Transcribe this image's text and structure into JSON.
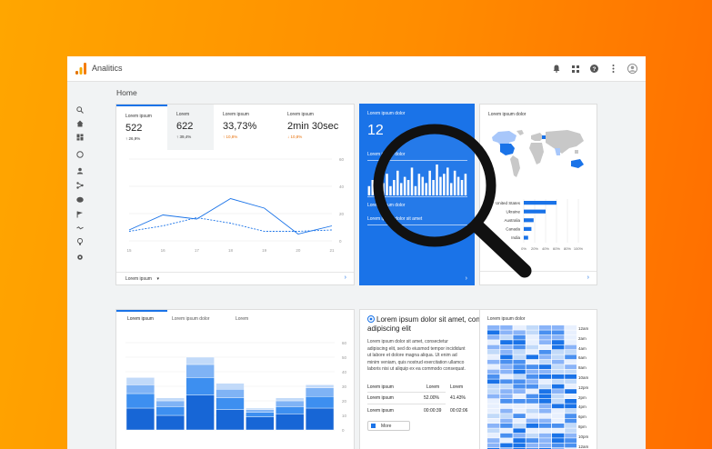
{
  "app": {
    "title": "Analitics"
  },
  "page": {
    "title": "Home"
  },
  "topbar_icons": [
    "bell-icon",
    "apps-icon",
    "help-icon",
    "more-vert-icon",
    "account-icon"
  ],
  "sidebar_icons": [
    "search-icon",
    "home-icon",
    "dashboard-icon",
    "realtime-icon",
    "user-icon",
    "share-icon",
    "chat-icon",
    "flag-icon",
    "trend-icon",
    "lightbulb-icon",
    "gear-icon"
  ],
  "overview": {
    "metrics": [
      {
        "label": "Lorem ipsum",
        "value": "522",
        "delta": "↑ 26,9%"
      },
      {
        "label": "Lorem",
        "value": "622",
        "delta": "↑ 39,4%"
      },
      {
        "label": "Lorem ipsum",
        "value": "33,73%",
        "delta": "↑ 10,8%"
      },
      {
        "label": "Lorem ipsum",
        "value": "2min 30sec",
        "delta": "↓ 10,8%"
      }
    ],
    "footer_select": "Lorem ipsum",
    "footer_caret": "▾",
    "footer_arrow": "›"
  },
  "line_chart": {
    "type": "line",
    "x": [
      "15",
      "16",
      "17",
      "18",
      "19",
      "20",
      "21"
    ],
    "y_ticks": [
      "60",
      "40",
      "20",
      "0"
    ],
    "ylim": [
      0,
      60
    ],
    "series": [
      {
        "style": "solid",
        "values": [
          8,
          19,
          16,
          31,
          24,
          5,
          11
        ]
      },
      {
        "style": "dashed",
        "values": [
          7,
          11,
          17,
          13,
          7,
          7,
          8
        ]
      }
    ]
  },
  "realtime": {
    "title": "Lorem ipsum dolor",
    "value": "12",
    "label1": "Lorem ipsum dolor",
    "label2": "Lorem ipsum dolor",
    "label3": "Lorem ipsum dolor sit amet",
    "arrow": "›",
    "bars": [
      3,
      5,
      2,
      6,
      4,
      7,
      3,
      5,
      8,
      4,
      6,
      5,
      9,
      3,
      7,
      6,
      4,
      8,
      5,
      10,
      6,
      7,
      9,
      4,
      8,
      6,
      5,
      7
    ]
  },
  "geo": {
    "title": "Lorem ipsum dolor",
    "arrow": "›",
    "chart_data": {
      "type": "bar",
      "categories": [
        "United States",
        "Ukraine",
        "Australia",
        "Canada",
        "India"
      ],
      "values": [
        60,
        40,
        18,
        14,
        8
      ],
      "x_ticks": [
        "0%",
        "20%",
        "40%",
        "60%",
        "80%",
        "100%"
      ],
      "xlim": [
        0,
        100
      ]
    }
  },
  "stacked": {
    "tabs": [
      "Lorem ipsum",
      "Lorem ipsum dolor",
      "Lorem"
    ],
    "y_ticks": [
      "60",
      "50",
      "40",
      "30",
      "20",
      "10",
      "0"
    ],
    "chart_data": {
      "type": "bar",
      "ylim": [
        0,
        60
      ],
      "series": [
        {
          "values": [
            15,
            10,
            24,
            14,
            9,
            11,
            15
          ]
        },
        {
          "values": [
            10,
            6,
            12,
            8,
            3,
            5,
            8
          ]
        },
        {
          "values": [
            6,
            4,
            9,
            6,
            2,
            4,
            6
          ]
        },
        {
          "values": [
            5,
            2,
            5,
            4,
            1,
            2,
            2
          ]
        }
      ],
      "colors": [
        "#1766d6",
        "#3d8ff0",
        "#7fb3f5",
        "#c2daf9"
      ]
    }
  },
  "article": {
    "heading": "Lorem ipsum dolor sit amet, consectetur adipiscing elit",
    "body": "Lorem ipsum dolor sit amet, consectetur adipiscing elit, sed do eiusmod tempor incididunt ut labore et dolore magna aliqua. Ut enim ad minim veniam, quis nostrud exercitation ullamco laboris nisi ut aliquip ex ea commodo consequat.",
    "table_header": {
      "label": "Lorem ipsum",
      "c1": "Lorem",
      "c2": "Lorem"
    },
    "rows": [
      {
        "label": "Lorem ipsum",
        "c1": "52.00%",
        "c2": "41.43%"
      },
      {
        "label": "Lorem ipsum",
        "c1": "00:00:39",
        "c2": "00:02:06"
      }
    ],
    "more": "More"
  },
  "heatmap": {
    "title": "Lorem ipsum dolor",
    "times": [
      "12am",
      "2am",
      "4am",
      "6am",
      "8am",
      "10am",
      "12pm",
      "2pm",
      "4pm",
      "6pm",
      "8pm",
      "10pm",
      "12am"
    ]
  },
  "colors": {
    "accent": "#1a73e8",
    "orange": "#e8710a",
    "bg_orange": "#ff8c00"
  }
}
